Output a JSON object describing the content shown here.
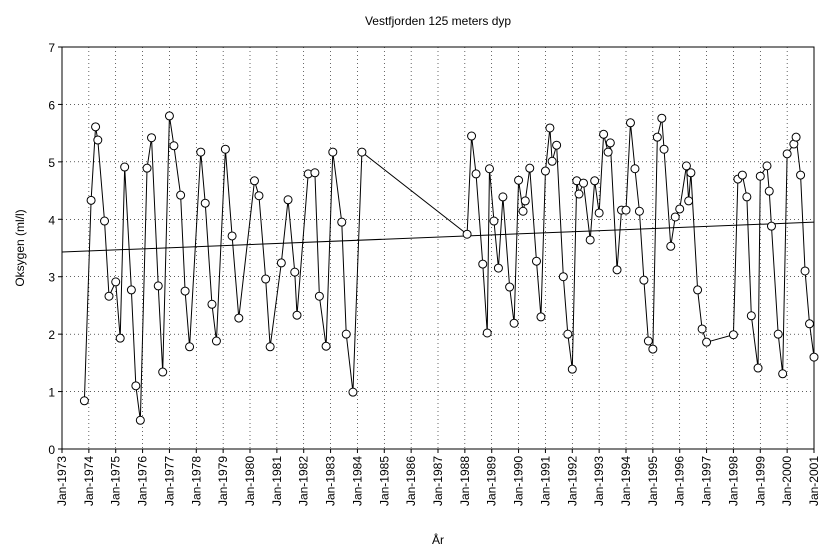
{
  "chart_data": {
    "type": "line",
    "title": "Vestfjorden 125 meters dyp",
    "xlabel": "År",
    "ylabel": "Oksygen (ml/l)",
    "grid": true,
    "color": "#000000",
    "marker": "circle",
    "xlim": [
      "1973-01",
      "2001-01"
    ],
    "ylim": [
      0,
      7
    ],
    "yticks": [
      0,
      1,
      2,
      3,
      4,
      5,
      6,
      7
    ],
    "xticks": [
      {
        "value": "1973-01",
        "label": "Jan-1973"
      },
      {
        "value": "1974-01",
        "label": "Jan-1974"
      },
      {
        "value": "1975-01",
        "label": "Jan-1975"
      },
      {
        "value": "1976-01",
        "label": "Jan-1976"
      },
      {
        "value": "1977-01",
        "label": "Jan-1977"
      },
      {
        "value": "1978-01",
        "label": "Jan-1978"
      },
      {
        "value": "1979-01",
        "label": "Jan-1979"
      },
      {
        "value": "1980-01",
        "label": "Jan-1980"
      },
      {
        "value": "1981-01",
        "label": "Jan-1981"
      },
      {
        "value": "1982-01",
        "label": "Jan-1982"
      },
      {
        "value": "1983-01",
        "label": "Jan-1983"
      },
      {
        "value": "1984-01",
        "label": "Jan-1984"
      },
      {
        "value": "1985-01",
        "label": "Jan-1985"
      },
      {
        "value": "1986-01",
        "label": "Jan-1986"
      },
      {
        "value": "1987-01",
        "label": "Jan-1987"
      },
      {
        "value": "1988-01",
        "label": "Jan-1988"
      },
      {
        "value": "1989-01",
        "label": "Jan-1989"
      },
      {
        "value": "1990-01",
        "label": "Jan-1990"
      },
      {
        "value": "1991-01",
        "label": "Jan-1991"
      },
      {
        "value": "1992-01",
        "label": "Jan-1992"
      },
      {
        "value": "1993-01",
        "label": "Jan-1993"
      },
      {
        "value": "1994-01",
        "label": "Jan-1994"
      },
      {
        "value": "1995-01",
        "label": "Jan-1995"
      },
      {
        "value": "1996-01",
        "label": "Jan-1996"
      },
      {
        "value": "1997-01",
        "label": "Jan-1997"
      },
      {
        "value": "1998-01",
        "label": "Jan-1998"
      },
      {
        "value": "1999-01",
        "label": "Jan-1999"
      },
      {
        "value": "2000-01",
        "label": "Jan-2000"
      },
      {
        "value": "2001-01",
        "label": "Jan-2001"
      }
    ],
    "x": [
      "1973-11",
      "1974-02",
      "1974-04",
      "1974-05",
      "1974-08",
      "1974-10",
      "1975-01",
      "1975-03",
      "1975-05",
      "1975-08",
      "1975-10",
      "1975-12",
      "1976-03",
      "1976-05",
      "1976-08",
      "1976-10",
      "1977-01",
      "1977-03",
      "1977-06",
      "1977-08",
      "1977-10",
      "1978-03",
      "1978-05",
      "1978-08",
      "1978-10",
      "1979-02",
      "1979-05",
      "1979-08",
      "1980-03",
      "1980-05",
      "1980-08",
      "1980-10",
      "1981-03",
      "1981-06",
      "1981-09",
      "1981-10",
      "1982-03",
      "1982-06",
      "1982-08",
      "1982-11",
      "1983-02",
      "1983-06",
      "1983-08",
      "1983-11",
      "1984-03",
      "1988-02",
      "1988-04",
      "1988-06",
      "1988-09",
      "1988-11",
      "1988-12",
      "1989-02",
      "1989-04",
      "1989-06",
      "1989-09",
      "1989-11",
      "1990-01",
      "1990-03",
      "1990-04",
      "1990-06",
      "1990-09",
      "1990-11",
      "1991-01",
      "1991-03",
      "1991-04",
      "1991-06",
      "1991-09",
      "1991-11",
      "1992-01",
      "1992-03",
      "1992-04",
      "1992-06",
      "1992-09",
      "1992-11",
      "1993-01",
      "1993-03",
      "1993-05",
      "1993-06",
      "1993-09",
      "1993-11",
      "1994-01",
      "1994-03",
      "1994-05",
      "1994-07",
      "1994-09",
      "1994-11",
      "1995-01",
      "1995-03",
      "1995-05",
      "1995-06",
      "1995-09",
      "1995-11",
      "1996-01",
      "1996-04",
      "1996-05",
      "1996-06",
      "1996-09",
      "1996-11",
      "1997-01",
      "1998-01",
      "1998-03",
      "1998-05",
      "1998-07",
      "1998-09",
      "1998-12",
      "1999-01",
      "1999-04",
      "1999-05",
      "1999-06",
      "1999-09",
      "1999-11",
      "2000-01",
      "2000-04",
      "2000-05",
      "2000-07",
      "2000-09",
      "2000-11",
      "2001-01"
    ],
    "values": [
      0.84,
      4.33,
      5.61,
      5.38,
      3.97,
      2.66,
      2.91,
      1.93,
      4.91,
      2.77,
      1.1,
      0.5,
      4.89,
      5.42,
      2.84,
      1.34,
      5.8,
      5.28,
      4.42,
      2.75,
      1.78,
      5.17,
      4.28,
      2.52,
      1.88,
      5.22,
      3.71,
      2.28,
      4.67,
      4.41,
      2.96,
      1.78,
      3.24,
      4.34,
      3.08,
      2.33,
      4.79,
      4.81,
      2.66,
      1.79,
      5.17,
      3.95,
      2.0,
      0.99,
      5.17,
      3.74,
      5.45,
      4.79,
      3.22,
      2.02,
      4.88,
      3.97,
      3.15,
      4.39,
      2.82,
      2.19,
      4.68,
      4.14,
      4.32,
      4.89,
      3.27,
      2.3,
      4.84,
      5.59,
      5.01,
      5.29,
      3.0,
      2.0,
      1.39,
      4.67,
      4.44,
      4.63,
      3.64,
      4.67,
      4.11,
      5.48,
      5.17,
      5.33,
      3.12,
      4.16,
      4.16,
      5.68,
      4.88,
      4.14,
      2.94,
      1.88,
      1.74,
      5.43,
      5.76,
      5.22,
      3.53,
      4.04,
      4.18,
      4.93,
      4.32,
      4.81,
      2.77,
      2.09,
      1.86,
      1.99,
      4.7,
      4.77,
      4.39,
      2.32,
      1.41,
      4.75,
      4.93,
      4.49,
      3.88,
      2.0,
      1.31,
      5.14,
      5.31,
      5.43,
      4.77,
      3.1,
      2.18,
      1.6
    ],
    "trend": {
      "x": [
        "1973-01",
        "2001-01"
      ],
      "values": [
        3.43,
        3.95
      ]
    }
  }
}
